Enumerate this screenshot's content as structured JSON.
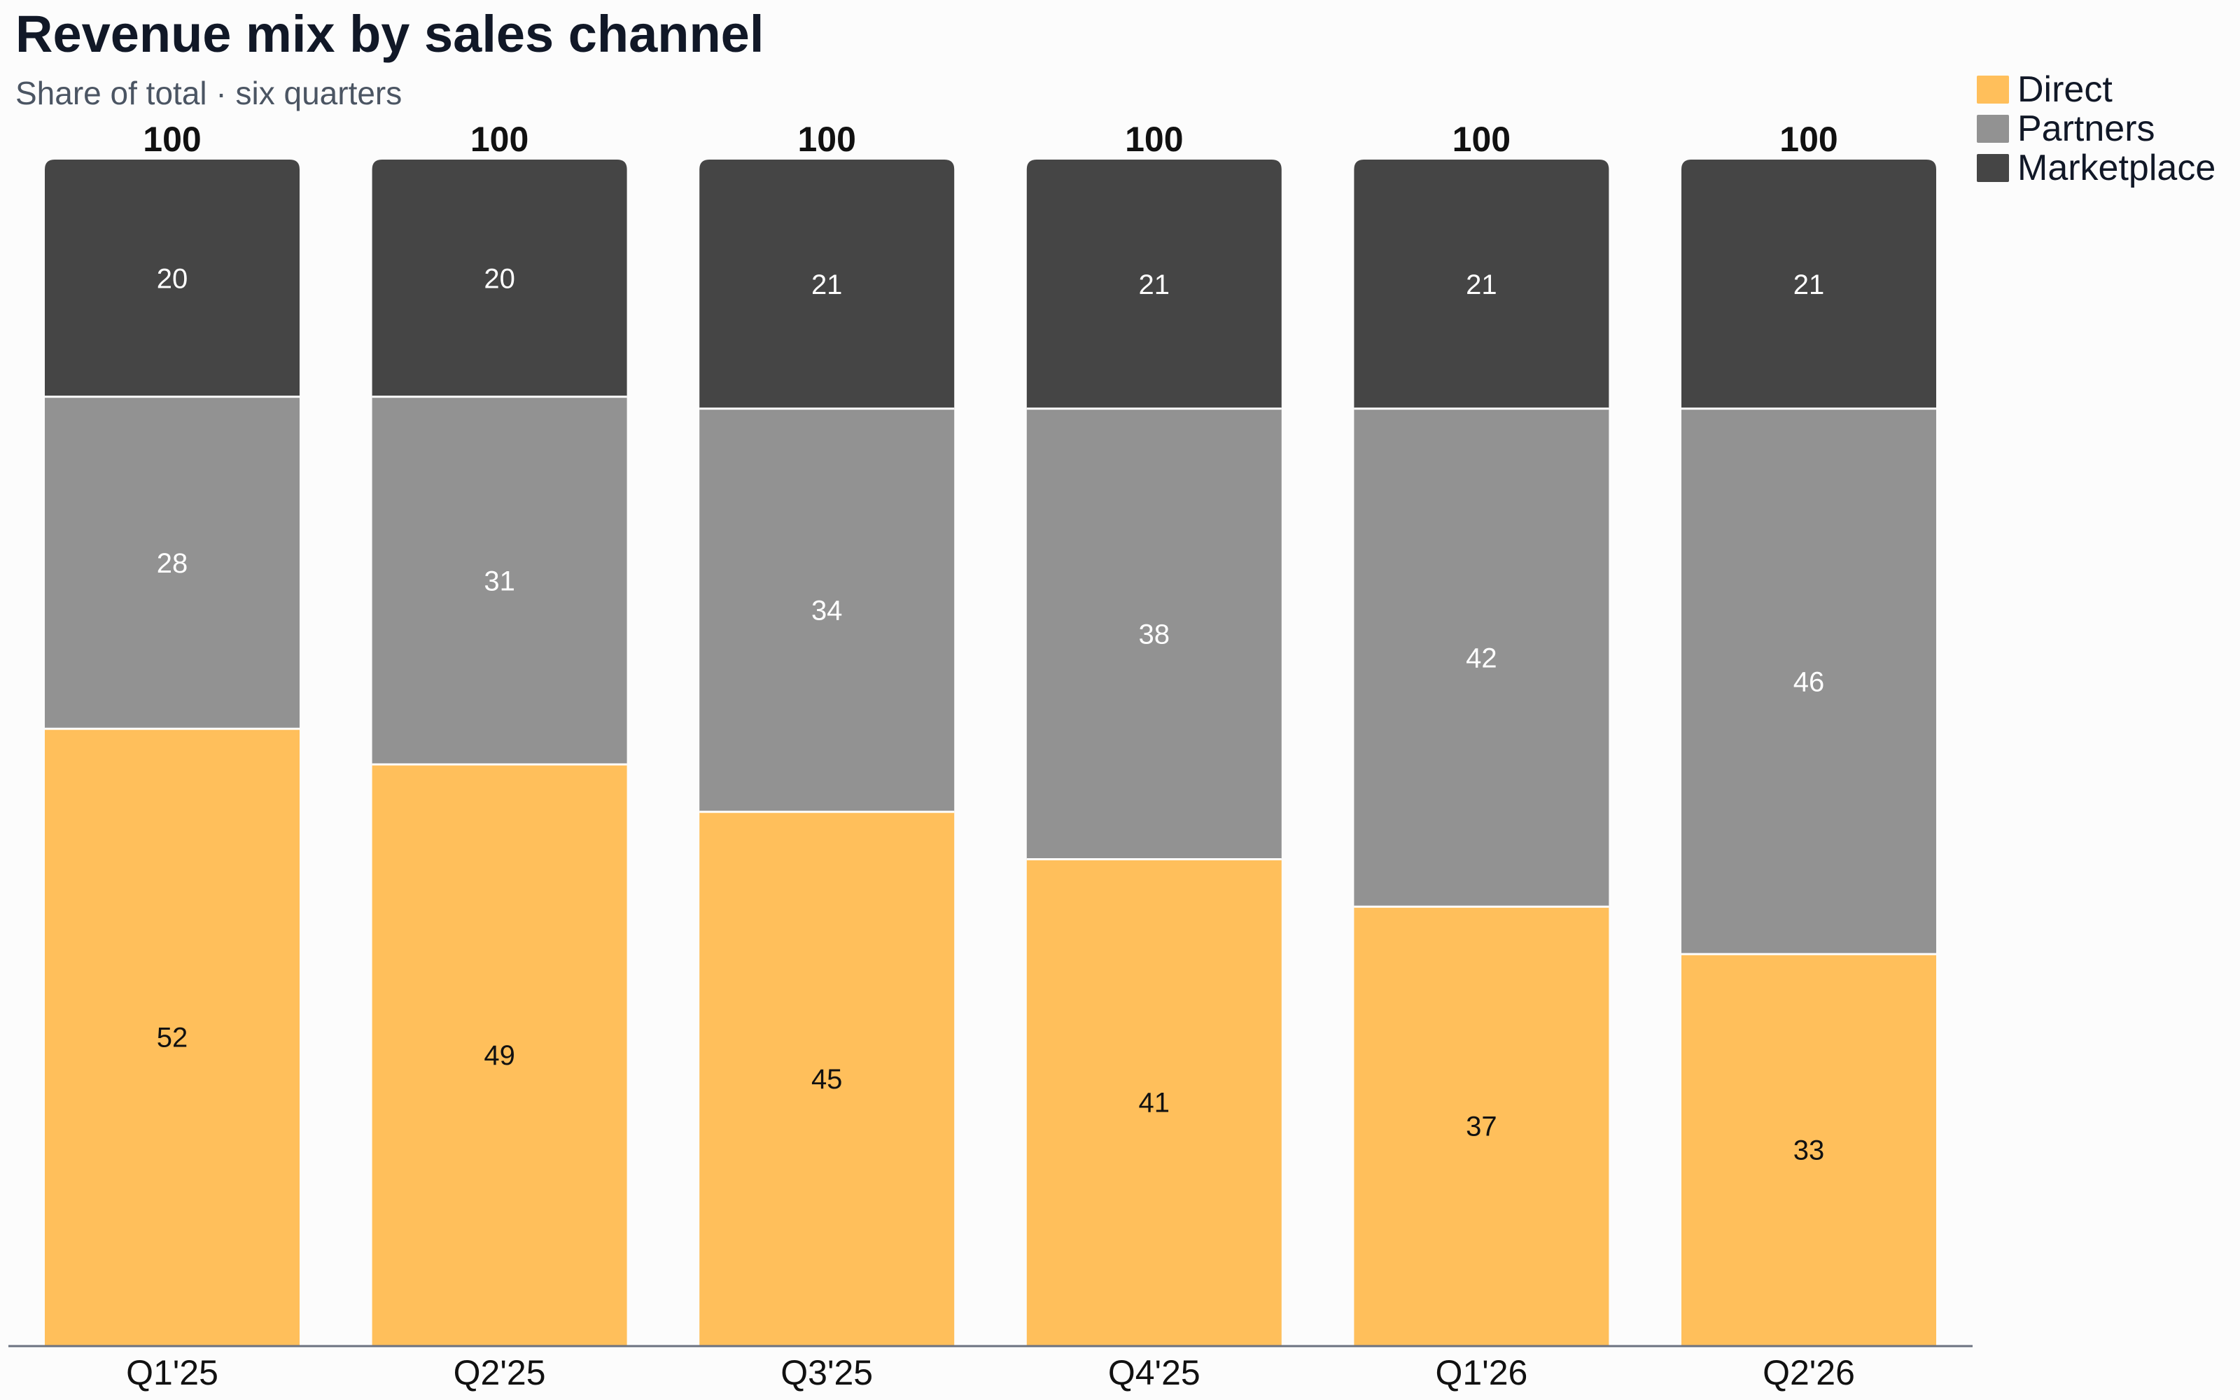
{
  "title": "Revenue mix by sales channel",
  "subtitle": "Share of total · six quarters",
  "colors": {
    "direct": "#ffbf5b",
    "partners": "#929292",
    "marketplace": "#454545",
    "axis": "#6b7280",
    "text_dark": "#111111",
    "text_light": "#ffffff"
  },
  "legend": [
    {
      "label": "Direct",
      "color": "#ffbf5b"
    },
    {
      "label": "Partners",
      "color": "#929292"
    },
    {
      "label": "Marketplace",
      "color": "#454545"
    }
  ],
  "chart_data": {
    "type": "bar",
    "stacked": true,
    "title": "Revenue mix by sales channel",
    "subtitle": "Share of total · six quarters",
    "xlabel": "",
    "ylabel": "",
    "ylim": [
      0,
      100
    ],
    "grid": false,
    "legend_position": "top-right",
    "categories": [
      "Q1'25",
      "Q2'25",
      "Q3'25",
      "Q4'25",
      "Q1'26",
      "Q2'26"
    ],
    "series": [
      {
        "name": "Direct",
        "color": "#ffbf5b",
        "values": [
          52,
          49,
          45,
          41,
          37,
          33
        ]
      },
      {
        "name": "Partners",
        "color": "#929292",
        "values": [
          28,
          31,
          34,
          38,
          42,
          46
        ]
      },
      {
        "name": "Marketplace",
        "color": "#454545",
        "values": [
          20,
          20,
          21,
          21,
          21,
          21
        ]
      }
    ],
    "totals": [
      100,
      100,
      100,
      100,
      100,
      100
    ]
  }
}
